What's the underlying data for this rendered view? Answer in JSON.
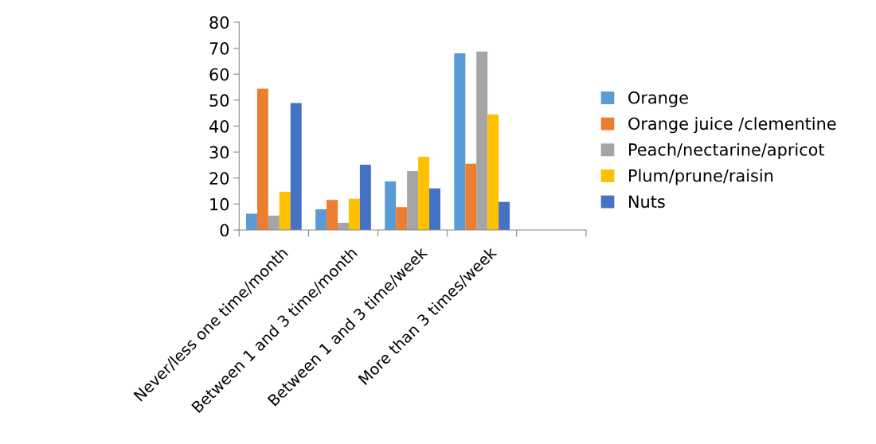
{
  "chart_data": {
    "type": "bar",
    "categories": [
      "Never/less one time/month",
      "Between 1 and 3 time/month",
      "Between 1 and 3 time/week",
      "More than 3 times/week",
      null
    ],
    "series": [
      {
        "name": "Orange",
        "color": "#5b9bd5",
        "values": [
          6.3,
          8.0,
          18.7,
          68.0,
          null
        ]
      },
      {
        "name": "Orange juice /clementine",
        "color": "#ed7d31",
        "values": [
          54.4,
          11.6,
          8.8,
          25.5,
          null
        ]
      },
      {
        "name": "Peach/nectarine/apricot",
        "color": "#a5a5a5",
        "values": [
          5.5,
          2.8,
          22.7,
          68.7,
          null
        ]
      },
      {
        "name": "Plum/prune/raisin",
        "color": "#ffc000",
        "values": [
          14.7,
          12.0,
          28.2,
          44.5,
          null
        ]
      },
      {
        "name": "Nuts",
        "color": "#4472c4",
        "values": [
          48.9,
          25.1,
          16.0,
          10.8,
          null
        ]
      }
    ],
    "ylim": [
      0,
      80
    ],
    "yticks": [
      0,
      10,
      20,
      30,
      40,
      50,
      60,
      70,
      80
    ],
    "grid": false,
    "legend": "right"
  }
}
